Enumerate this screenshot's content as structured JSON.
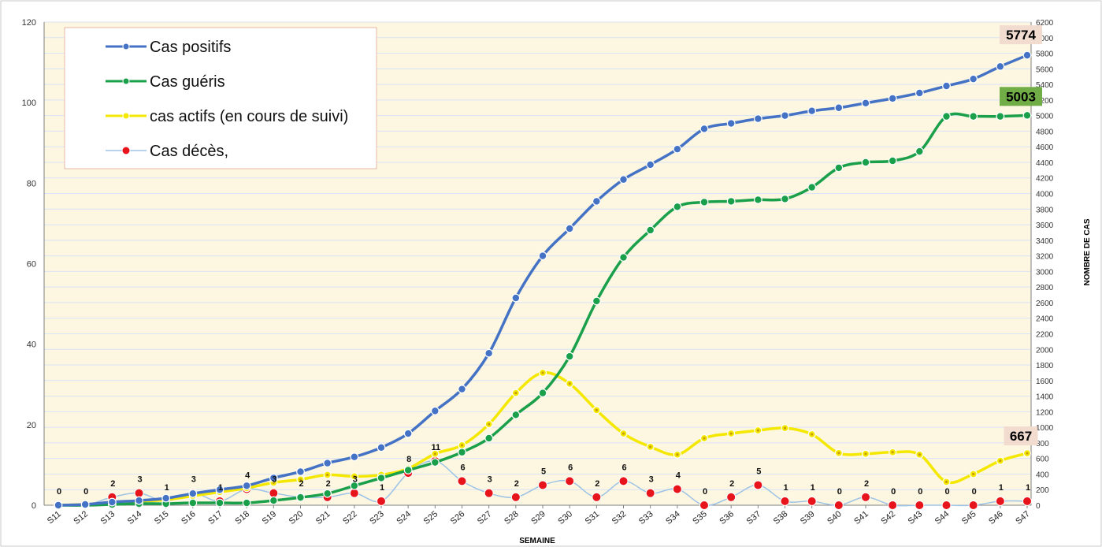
{
  "chart_data": {
    "type": "line",
    "xlabel": "SEMAINE",
    "ylabel_right": "NOMBRE DE CAS",
    "left_axis": {
      "min": 0,
      "max": 120,
      "step": 20
    },
    "right_axis": {
      "min": 0,
      "max": 6200,
      "step": 200
    },
    "grid": true,
    "legend_position": "top-left",
    "categories": [
      "S11",
      "S12",
      "S13",
      "S14",
      "S15",
      "S16",
      "S17",
      "S18",
      "S19",
      "S20",
      "S21",
      "S22",
      "S23",
      "S24",
      "S25",
      "S26",
      "S27",
      "S28",
      "S29",
      "S30",
      "S31",
      "S32",
      "S33",
      "S34",
      "S35",
      "S36",
      "S37",
      "S38",
      "S39",
      "S40",
      "S41",
      "S42",
      "S43",
      "S44",
      "S45",
      "S46",
      "S47"
    ],
    "series": [
      {
        "name": "Cas positifs",
        "axis": "right",
        "color": "#4472c4",
        "values": [
          0,
          10,
          40,
          60,
          90,
          150,
          200,
          250,
          350,
          430,
          540,
          620,
          740,
          920,
          1210,
          1490,
          1950,
          2660,
          3200,
          3550,
          3900,
          4180,
          4370,
          4570,
          4830,
          4900,
          4960,
          5000,
          5060,
          5100,
          5160,
          5220,
          5290,
          5380,
          5470,
          5630,
          5774
        ]
      },
      {
        "name": "Cas guéris",
        "axis": "right",
        "color": "#1aa04a",
        "values": [
          0,
          0,
          10,
          20,
          20,
          30,
          30,
          30,
          60,
          100,
          150,
          250,
          350,
          450,
          550,
          680,
          860,
          1160,
          1440,
          1910,
          2620,
          3180,
          3530,
          3830,
          3890,
          3900,
          3920,
          3930,
          4080,
          4330,
          4400,
          4420,
          4540,
          4990,
          4990,
          4990,
          5003
        ]
      },
      {
        "name": "cas actifs (en cours de suivi)",
        "axis": "right",
        "color": "#f5e800",
        "marker_fill": "#f5e800",
        "marker_stroke": "#c8a000",
        "values": [
          0,
          10,
          30,
          50,
          70,
          120,
          170,
          220,
          290,
          330,
          390,
          370,
          390,
          470,
          660,
          770,
          1040,
          1440,
          1700,
          1560,
          1220,
          920,
          750,
          650,
          860,
          920,
          960,
          990,
          910,
          670,
          660,
          680,
          650,
          300,
          400,
          570,
          667
        ]
      },
      {
        "name": "Cas décès,",
        "axis": "left",
        "color": "#9dc3e6",
        "marker_fill": "#e8141c",
        "values": [
          0,
          0,
          2,
          3,
          1,
          3,
          1,
          4,
          3,
          2,
          2,
          3,
          1,
          8,
          11,
          6,
          3,
          2,
          5,
          6,
          2,
          6,
          3,
          4,
          0,
          2,
          5,
          1,
          1,
          0,
          2,
          0,
          0,
          0,
          0,
          1,
          1
        ],
        "data_labels": [
          "0",
          "0",
          "2",
          "3",
          "1",
          "3",
          "1",
          "4",
          "3",
          "2",
          "2",
          "3",
          "1",
          "8",
          "11",
          "6",
          "3",
          "2",
          "5",
          "6",
          "2",
          "6",
          "3",
          "4",
          "0",
          "2",
          "5",
          "1",
          "1",
          "0",
          "2",
          "0",
          "0",
          "0",
          "0",
          "1",
          "1"
        ]
      }
    ],
    "callouts": [
      {
        "text": "5774",
        "series": "Cas positifs",
        "bg": "#f2dcd0"
      },
      {
        "text": "5003",
        "series": "Cas guéris",
        "bg": "#70ad47"
      },
      {
        "text": "667",
        "series": "cas actifs (en cours de suivi)",
        "bg": "#f2dcd0"
      }
    ]
  }
}
